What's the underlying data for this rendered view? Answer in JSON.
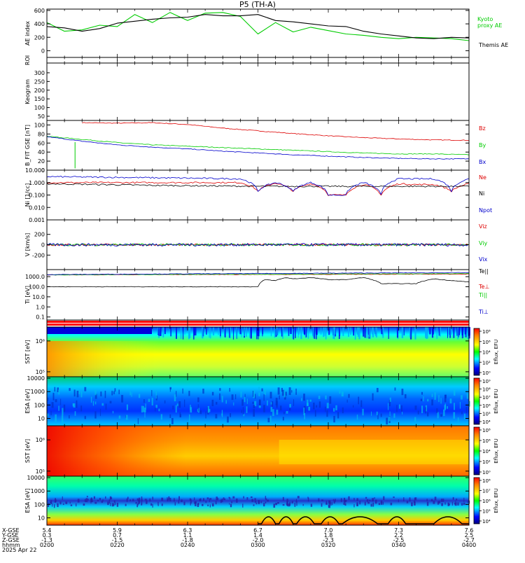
{
  "chart_data": {
    "title": "P5 (TH-A)",
    "date_label": "2025 Apr 22",
    "time_axis": {
      "row_labels": [
        "X-GSE",
        "Y-GSE",
        "Z-GSE",
        "hhmm"
      ],
      "hhmm": [
        "0200",
        "0220",
        "0240",
        "0300",
        "0320",
        "0340",
        "0400"
      ],
      "x_gse": [
        "5.4",
        "5.9",
        "6.3",
        "6.7",
        "7.0",
        "7.3",
        "7.6"
      ],
      "y_gse": [
        "0.3",
        "0.7",
        "1.1",
        "1.4",
        "1.8",
        "2.2",
        "2.5"
      ],
      "z_gse": [
        "-1.3",
        "-1.5",
        "-1.8",
        "-2.0",
        "-2.3",
        "-2.5",
        "-2.7"
      ]
    },
    "panels": [
      {
        "id": "ae",
        "type": "line",
        "ylabel": "AE index",
        "yscale": "linear",
        "ylim": [
          -100,
          620
        ],
        "yticks": [
          "0",
          "200",
          "400",
          "600"
        ],
        "series": [
          {
            "name": "Kyoto proxy AE",
            "color": "#00cc00",
            "x": [
              0,
              5,
              10,
              15,
              20,
              25,
              30,
              35,
              40,
              45,
              50,
              55,
              60,
              65,
              70,
              75,
              80,
              85,
              90,
              95,
              100,
              105,
              110,
              115,
              120
            ],
            "y": [
              420,
              290,
              310,
              380,
              360,
              540,
              420,
              570,
              450,
              560,
              570,
              510,
              250,
              420,
              280,
              350,
              300,
              250,
              230,
              200,
              180,
              200,
              190,
              180,
              150
            ]
          },
          {
            "name": "Themis AE",
            "color": "#000000",
            "x": [
              0,
              5,
              10,
              15,
              20,
              25,
              30,
              35,
              40,
              45,
              50,
              55,
              60,
              65,
              70,
              75,
              80,
              85,
              90,
              95,
              100,
              105,
              110,
              115,
              120
            ],
            "y": [
              360,
              340,
              290,
              330,
              410,
              440,
              470,
              490,
              500,
              540,
              520,
              520,
              540,
              450,
              430,
              400,
              370,
              360,
              290,
              250,
              220,
              190,
              180,
              200,
              190
            ]
          }
        ]
      },
      {
        "id": "roi",
        "type": "empty",
        "ylabel": "ROI"
      },
      {
        "id": "keogram",
        "type": "empty",
        "ylabel": "Keogram",
        "yticks": [
          "50",
          "100",
          "150",
          "200",
          "250",
          "300"
        ]
      },
      {
        "id": "bfield",
        "type": "line",
        "ylabel": "B_FIT GSE [nT]",
        "yscale": "linear",
        "ylim": [
          0,
          110
        ],
        "yticks": [
          "0",
          "20",
          "40",
          "60",
          "80",
          "100"
        ],
        "series": [
          {
            "name": "Bz",
            "color": "#dd0000",
            "x": [
              10,
              20,
              30,
              40,
              50,
              60,
              70,
              80,
              90,
              100,
              110,
              120
            ],
            "y": [
              105,
              104,
              105,
              101,
              93,
              87,
              81,
              76,
              72,
              69,
              67,
              66
            ]
          },
          {
            "name": "By",
            "color": "#00cc00",
            "x": [
              0,
              10,
              20,
              30,
              40,
              50,
              60,
              70,
              80,
              90,
              100,
              110,
              120
            ],
            "y": [
              75,
              68,
              61,
              56,
              53,
              50,
              47,
              44,
              41,
              38,
              36,
              36,
              34
            ]
          },
          {
            "name": "Bx",
            "color": "#0000cc",
            "x": [
              0,
              10,
              20,
              30,
              40,
              50,
              60,
              70,
              80,
              90,
              100,
              110,
              120
            ],
            "y": [
              74,
              64,
              56,
              51,
              47,
              42,
              38,
              34,
              31,
              28,
              26,
              25,
              25
            ]
          }
        ]
      },
      {
        "id": "density",
        "type": "line",
        "ylabel": "Ni [1/cc]",
        "yscale": "log",
        "ylim": [
          0.001,
          10
        ],
        "yticks": [
          "0.001",
          "0.010",
          "0.100",
          "1.000",
          "10.000"
        ],
        "series": [
          {
            "name": "Ne",
            "color": "#dd0000",
            "x": [
              0,
              55,
              60,
              65,
              70,
              75,
              80,
              85,
              90,
              95,
              100,
              105,
              110,
              115,
              120
            ],
            "y": [
              1.0,
              1.0,
              0.2,
              0.9,
              0.2,
              0.8,
              0.1,
              0.1,
              0.7,
              0.1,
              0.8,
              0.7,
              0.7,
              0.2,
              0.8
            ]
          },
          {
            "name": "Ni",
            "color": "#000000",
            "x": [
              0,
              30,
              60,
              90,
              120
            ],
            "y": [
              0.8,
              0.6,
              0.5,
              0.5,
              0.5
            ]
          },
          {
            "name": "Npot",
            "color": "#0000cc",
            "x": [
              0,
              55,
              60,
              65,
              70,
              75,
              80,
              85,
              90,
              95,
              100,
              105,
              110,
              115,
              120
            ],
            "y": [
              3.0,
              2.0,
              0.2,
              1.0,
              0.2,
              1.0,
              0.1,
              0.1,
              1.0,
              0.1,
              2.0,
              2.0,
              2.0,
              0.2,
              2.0
            ]
          }
        ]
      },
      {
        "id": "velocity",
        "type": "line",
        "ylabel": "V [km/s]",
        "yscale": "linear",
        "ylim": [
          -480,
          480
        ],
        "yticks": [
          "-200",
          "0",
          "200"
        ],
        "series": [
          {
            "name": "Viz",
            "color": "#dd0000",
            "x": [
              0,
              120
            ],
            "y": [
              0,
              0
            ]
          },
          {
            "name": "Viy",
            "color": "#00cc00",
            "x": [
              0,
              120
            ],
            "y": [
              0,
              0
            ]
          },
          {
            "name": "Vix",
            "color": "#0000cc",
            "x": [
              0,
              120
            ],
            "y": [
              0,
              0
            ]
          }
        ]
      },
      {
        "id": "temperature",
        "type": "line",
        "ylabel": "Ti [eV]",
        "yscale": "log",
        "ylim": [
          0.05,
          5000
        ],
        "yticks": [
          "0.1",
          "1.0",
          "10.0",
          "100.0",
          "1000.0"
        ],
        "series": [
          {
            "name": "Te||",
            "color": "#000000",
            "x": [
              0,
              60,
              62,
              65,
              68,
              70,
              75,
              80,
              85,
              90,
              95,
              100,
              105,
              110,
              115,
              120
            ],
            "y": [
              100,
              100,
              500,
              400,
              800,
              600,
              800,
              500,
              500,
              800,
              200,
              200,
              200,
              600,
              400,
              300
            ]
          },
          {
            "name": "Te⊥",
            "color": "#dd0000",
            "x": [
              0,
              120
            ],
            "y": [
              1500,
              1800
            ]
          },
          {
            "name": "Ti||",
            "color": "#00cc00",
            "x": [
              0,
              120
            ],
            "y": [
              1500,
              2000
            ]
          },
          {
            "name": "Ti⊥",
            "color": "#0000cc",
            "x": [
              0,
              120
            ],
            "y": [
              1600,
              2500
            ]
          }
        ]
      },
      {
        "id": "flags",
        "type": "bar_strip",
        "colors": [
          "#ff0000",
          "#ffffff",
          "#ff0000"
        ]
      },
      {
        "id": "sst_e",
        "type": "heatmap",
        "ylabel": "SST [eV]",
        "yscale": "log",
        "yticks": [
          "10⁶",
          "10⁵"
        ],
        "colorbar_label": "Eflux, EFU",
        "colorbar_ticks": [
          "10⁸",
          "10⁶",
          "10⁴",
          "10²",
          "10⁰"
        ]
      },
      {
        "id": "esa_e",
        "type": "heatmap",
        "ylabel": "ESA [eV]",
        "yscale": "log",
        "yticks": [
          "10",
          "100",
          "1000",
          "10000"
        ],
        "colorbar_label": "Eflux, EFU",
        "colorbar_ticks": [
          "10⁹",
          "10⁸",
          "10⁷",
          "10⁶",
          "10⁵",
          "10⁴"
        ]
      },
      {
        "id": "sst_i",
        "type": "heatmap",
        "ylabel": "SST [eV]",
        "yscale": "log",
        "yticks": [
          "10⁶",
          "10⁵"
        ],
        "colorbar_label": "Eflux, EFU",
        "colorbar_ticks": [
          "10⁸",
          "10⁶",
          "10⁴",
          "10²",
          "10⁰"
        ]
      },
      {
        "id": "esa_i",
        "type": "heatmap",
        "ylabel": "ESA [eV]",
        "yscale": "log",
        "yticks": [
          "10",
          "100",
          "1000",
          "10000"
        ],
        "colorbar_label": "Eflux, EFU",
        "colorbar_ticks": [
          "10⁸",
          "10⁷",
          "10⁶",
          "10⁵",
          "10⁴"
        ]
      }
    ]
  }
}
